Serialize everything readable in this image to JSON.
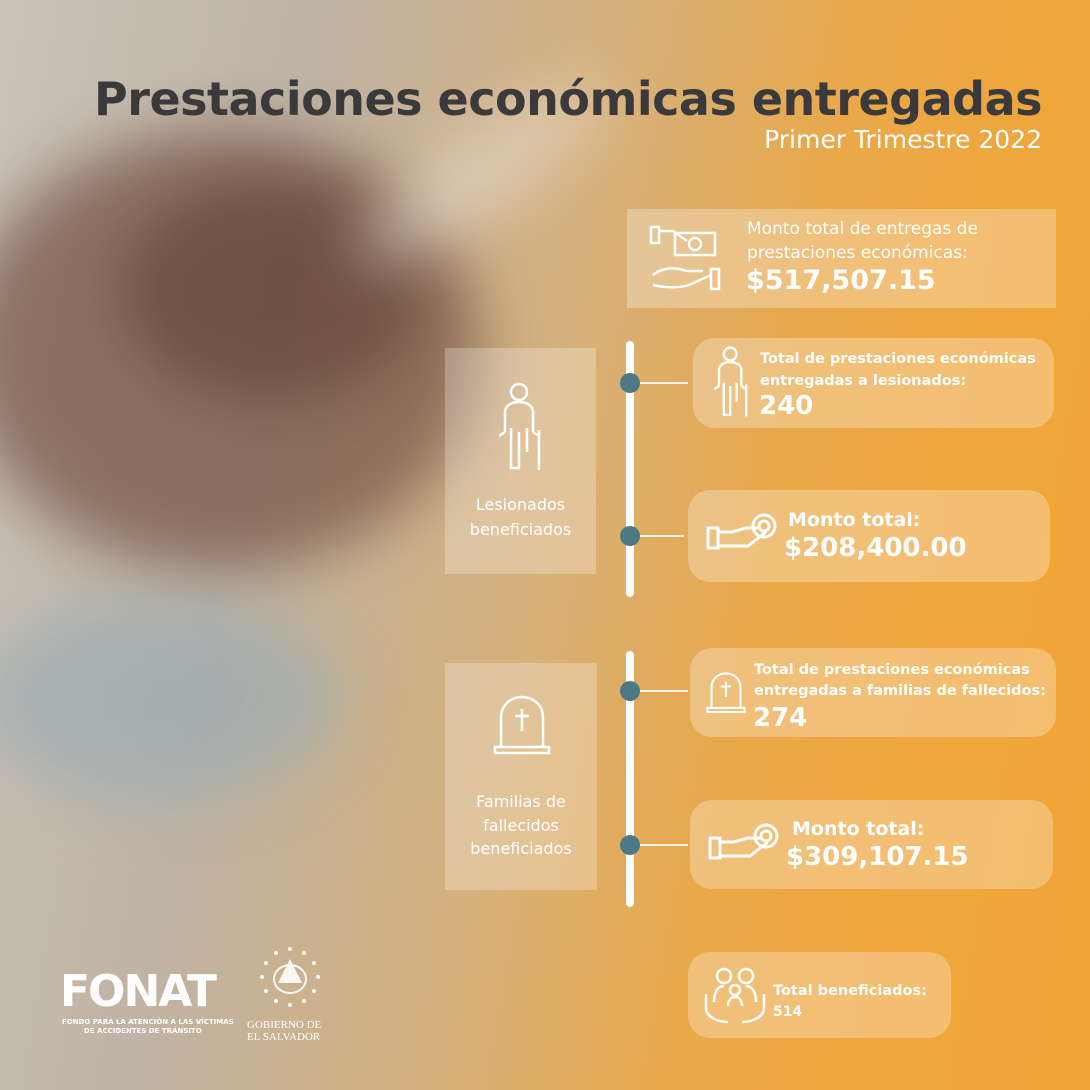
{
  "header": {
    "title": "Prestaciones económicas entregadas",
    "subtitle": "Primer Trimestre 2022"
  },
  "total_card": {
    "icon": "money-hand-icon",
    "label_line1": "Monto total de entregas de",
    "label_line2": "prestaciones económicas:",
    "value": "$517,507.15"
  },
  "lesionados": {
    "side_icon": "injured-person-crutch-icon",
    "side_label_line1": "Lesionados",
    "side_label_line2": "beneficiados",
    "count_card": {
      "icon": "injured-person-crutch-icon",
      "label_line1": "Total de prestaciones económicas",
      "label_line2": "entregadas a lesionados:",
      "value": "240"
    },
    "amount_card": {
      "icon": "hand-coin-icon",
      "label": "Monto total:",
      "value": "$208,400.00"
    }
  },
  "fallecidos": {
    "side_icon": "tombstone-icon",
    "side_label_line1": "Familias de",
    "side_label_line2": "fallecidos",
    "side_label_line3": "beneficiados",
    "count_card": {
      "icon": "tombstone-icon",
      "label_line1": "Total de prestaciones económicas",
      "label_line2": "entregadas a familias de fallecidos:",
      "value": "274"
    },
    "amount_card": {
      "icon": "hand-coin-icon",
      "label": "Monto total:",
      "value": "$309,107.15"
    }
  },
  "total_beneficiados": {
    "icon": "family-hands-icon",
    "label": "Total beneficiados:",
    "value": "514"
  },
  "footer": {
    "fonat_logo": "FONAT",
    "fonat_sub_line1": "FONDO PARA LA ATENCIÓN A LAS VÍCTIMAS",
    "fonat_sub_line2": "DE ACCIDENTES DE TRÁNSITO",
    "gov_line1": "GOBIERNO DE",
    "gov_line2": "EL SALVADOR"
  },
  "colors": {
    "accent_orange": "#f0a63a",
    "dot_teal": "#4b7a86",
    "title_dark": "#3a3a3c"
  }
}
